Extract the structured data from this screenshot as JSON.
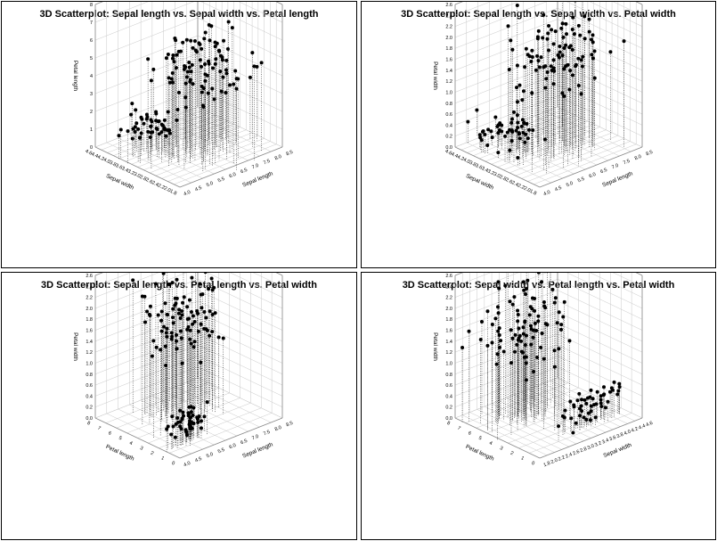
{
  "chart_data": [
    {
      "type": "scatter",
      "title": "3D Scatterplot: Sepal length vs. Sepal width vs. Petal length",
      "xlabel": "Sepal length",
      "ylabel": "Sepal width",
      "zlabel": "Petal length",
      "xticks": [
        "4.0",
        "4.5",
        "5.0",
        "5.5",
        "6.0",
        "6.5",
        "7.0",
        "7.5",
        "8.0",
        "8.5"
      ],
      "yticks": [
        "1.8",
        "2.0",
        "2.2",
        "2.4",
        "2.6",
        "2.8",
        "3.0",
        "3.2",
        "3.4",
        "3.6",
        "3.8",
        "4.0",
        "4.2",
        "4.4",
        "4.6"
      ],
      "zticks": [
        "0",
        "1",
        "2",
        "3",
        "4",
        "5",
        "6",
        "7",
        "8"
      ],
      "xlim": [
        4.0,
        8.5
      ],
      "ylim": [
        1.8,
        4.6
      ],
      "zlim": [
        0,
        8
      ],
      "grid": true,
      "groups": [
        {
          "n": 50,
          "x": [
            4.3,
            5.8
          ],
          "y": [
            2.9,
            4.4
          ],
          "z": [
            1.0,
            1.9
          ]
        },
        {
          "n": 100,
          "x": [
            4.9,
            7.9
          ],
          "y": [
            2.0,
            3.8
          ],
          "z": [
            3.0,
            6.9
          ]
        }
      ]
    },
    {
      "type": "scatter",
      "title": "3D Scatterplot: Sepal length vs. Sepal width vs. Petal width",
      "xlabel": "Sepal length",
      "ylabel": "Sepal width",
      "zlabel": "Petal width",
      "xticks": [
        "4.0",
        "4.5",
        "5.0",
        "5.5",
        "6.0",
        "6.5",
        "7.0",
        "7.5",
        "8.0",
        "8.5"
      ],
      "yticks": [
        "1.8",
        "2.0",
        "2.2",
        "2.4",
        "2.6",
        "2.8",
        "3.0",
        "3.2",
        "3.4",
        "3.6",
        "3.8",
        "4.0",
        "4.2",
        "4.4",
        "4.6"
      ],
      "zticks": [
        "0.0",
        "0.2",
        "0.4",
        "0.6",
        "0.8",
        "1.0",
        "1.2",
        "1.4",
        "1.6",
        "1.8",
        "2.0",
        "2.2",
        "2.4",
        "2.6"
      ],
      "xlim": [
        4.0,
        8.5
      ],
      "ylim": [
        1.8,
        4.6
      ],
      "zlim": [
        0,
        2.6
      ],
      "grid": true,
      "groups": [
        {
          "n": 50,
          "x": [
            4.3,
            5.8
          ],
          "y": [
            2.9,
            4.4
          ],
          "z": [
            0.1,
            0.6
          ]
        },
        {
          "n": 100,
          "x": [
            4.9,
            7.9
          ],
          "y": [
            2.0,
            3.8
          ],
          "z": [
            1.0,
            2.5
          ]
        }
      ]
    },
    {
      "type": "scatter",
      "title": "3D Scatterplot: Sepal length vs. Petal length vs. Petal width",
      "xlabel": "Sepal length",
      "ylabel": "Petal length",
      "zlabel": "Petal width",
      "xticks": [
        "4.0",
        "4.5",
        "5.0",
        "5.5",
        "6.0",
        "6.5",
        "7.0",
        "7.5",
        "8.0",
        "8.5"
      ],
      "yticks": [
        "0",
        "1",
        "2",
        "3",
        "4",
        "5",
        "6",
        "7",
        "8"
      ],
      "zticks": [
        "0.0",
        "0.2",
        "0.4",
        "0.6",
        "0.8",
        "1.0",
        "1.2",
        "1.4",
        "1.6",
        "1.8",
        "2.0",
        "2.2",
        "2.4",
        "2.6"
      ],
      "xlim": [
        4.0,
        8.5
      ],
      "ylim": [
        0,
        8
      ],
      "zlim": [
        0,
        2.6
      ],
      "grid": true,
      "groups": [
        {
          "n": 50,
          "x": [
            4.3,
            5.8
          ],
          "y": [
            1.0,
            1.9
          ],
          "z": [
            0.1,
            0.6
          ]
        },
        {
          "n": 100,
          "x": [
            4.9,
            7.9
          ],
          "y": [
            3.0,
            6.9
          ],
          "z": [
            1.0,
            2.5
          ]
        }
      ]
    },
    {
      "type": "scatter",
      "title": "3D Scatterplot: Sepal width vs. Petal length vs. Petal width",
      "xlabel": "Sepal width",
      "ylabel": "Petal length",
      "zlabel": "Petal width",
      "xticks": [
        "1.8",
        "2.0",
        "2.2",
        "2.4",
        "2.6",
        "2.8",
        "3.0",
        "3.2",
        "3.4",
        "3.6",
        "3.8",
        "4.0",
        "4.2",
        "4.4",
        "4.6"
      ],
      "yticks": [
        "0",
        "1",
        "2",
        "3",
        "4",
        "5",
        "6",
        "7",
        "8"
      ],
      "zticks": [
        "0.0",
        "0.2",
        "0.4",
        "0.6",
        "0.8",
        "1.0",
        "1.2",
        "1.4",
        "1.6",
        "1.8",
        "2.0",
        "2.2",
        "2.4",
        "2.6"
      ],
      "xlim": [
        1.8,
        4.6
      ],
      "ylim": [
        0,
        8
      ],
      "zlim": [
        0,
        2.6
      ],
      "grid": true,
      "groups": [
        {
          "n": 50,
          "x": [
            2.9,
            4.4
          ],
          "y": [
            1.0,
            1.9
          ],
          "z": [
            0.1,
            0.6
          ]
        },
        {
          "n": 100,
          "x": [
            2.0,
            3.8
          ],
          "y": [
            3.0,
            6.9
          ],
          "z": [
            1.0,
            2.5
          ]
        }
      ]
    }
  ]
}
